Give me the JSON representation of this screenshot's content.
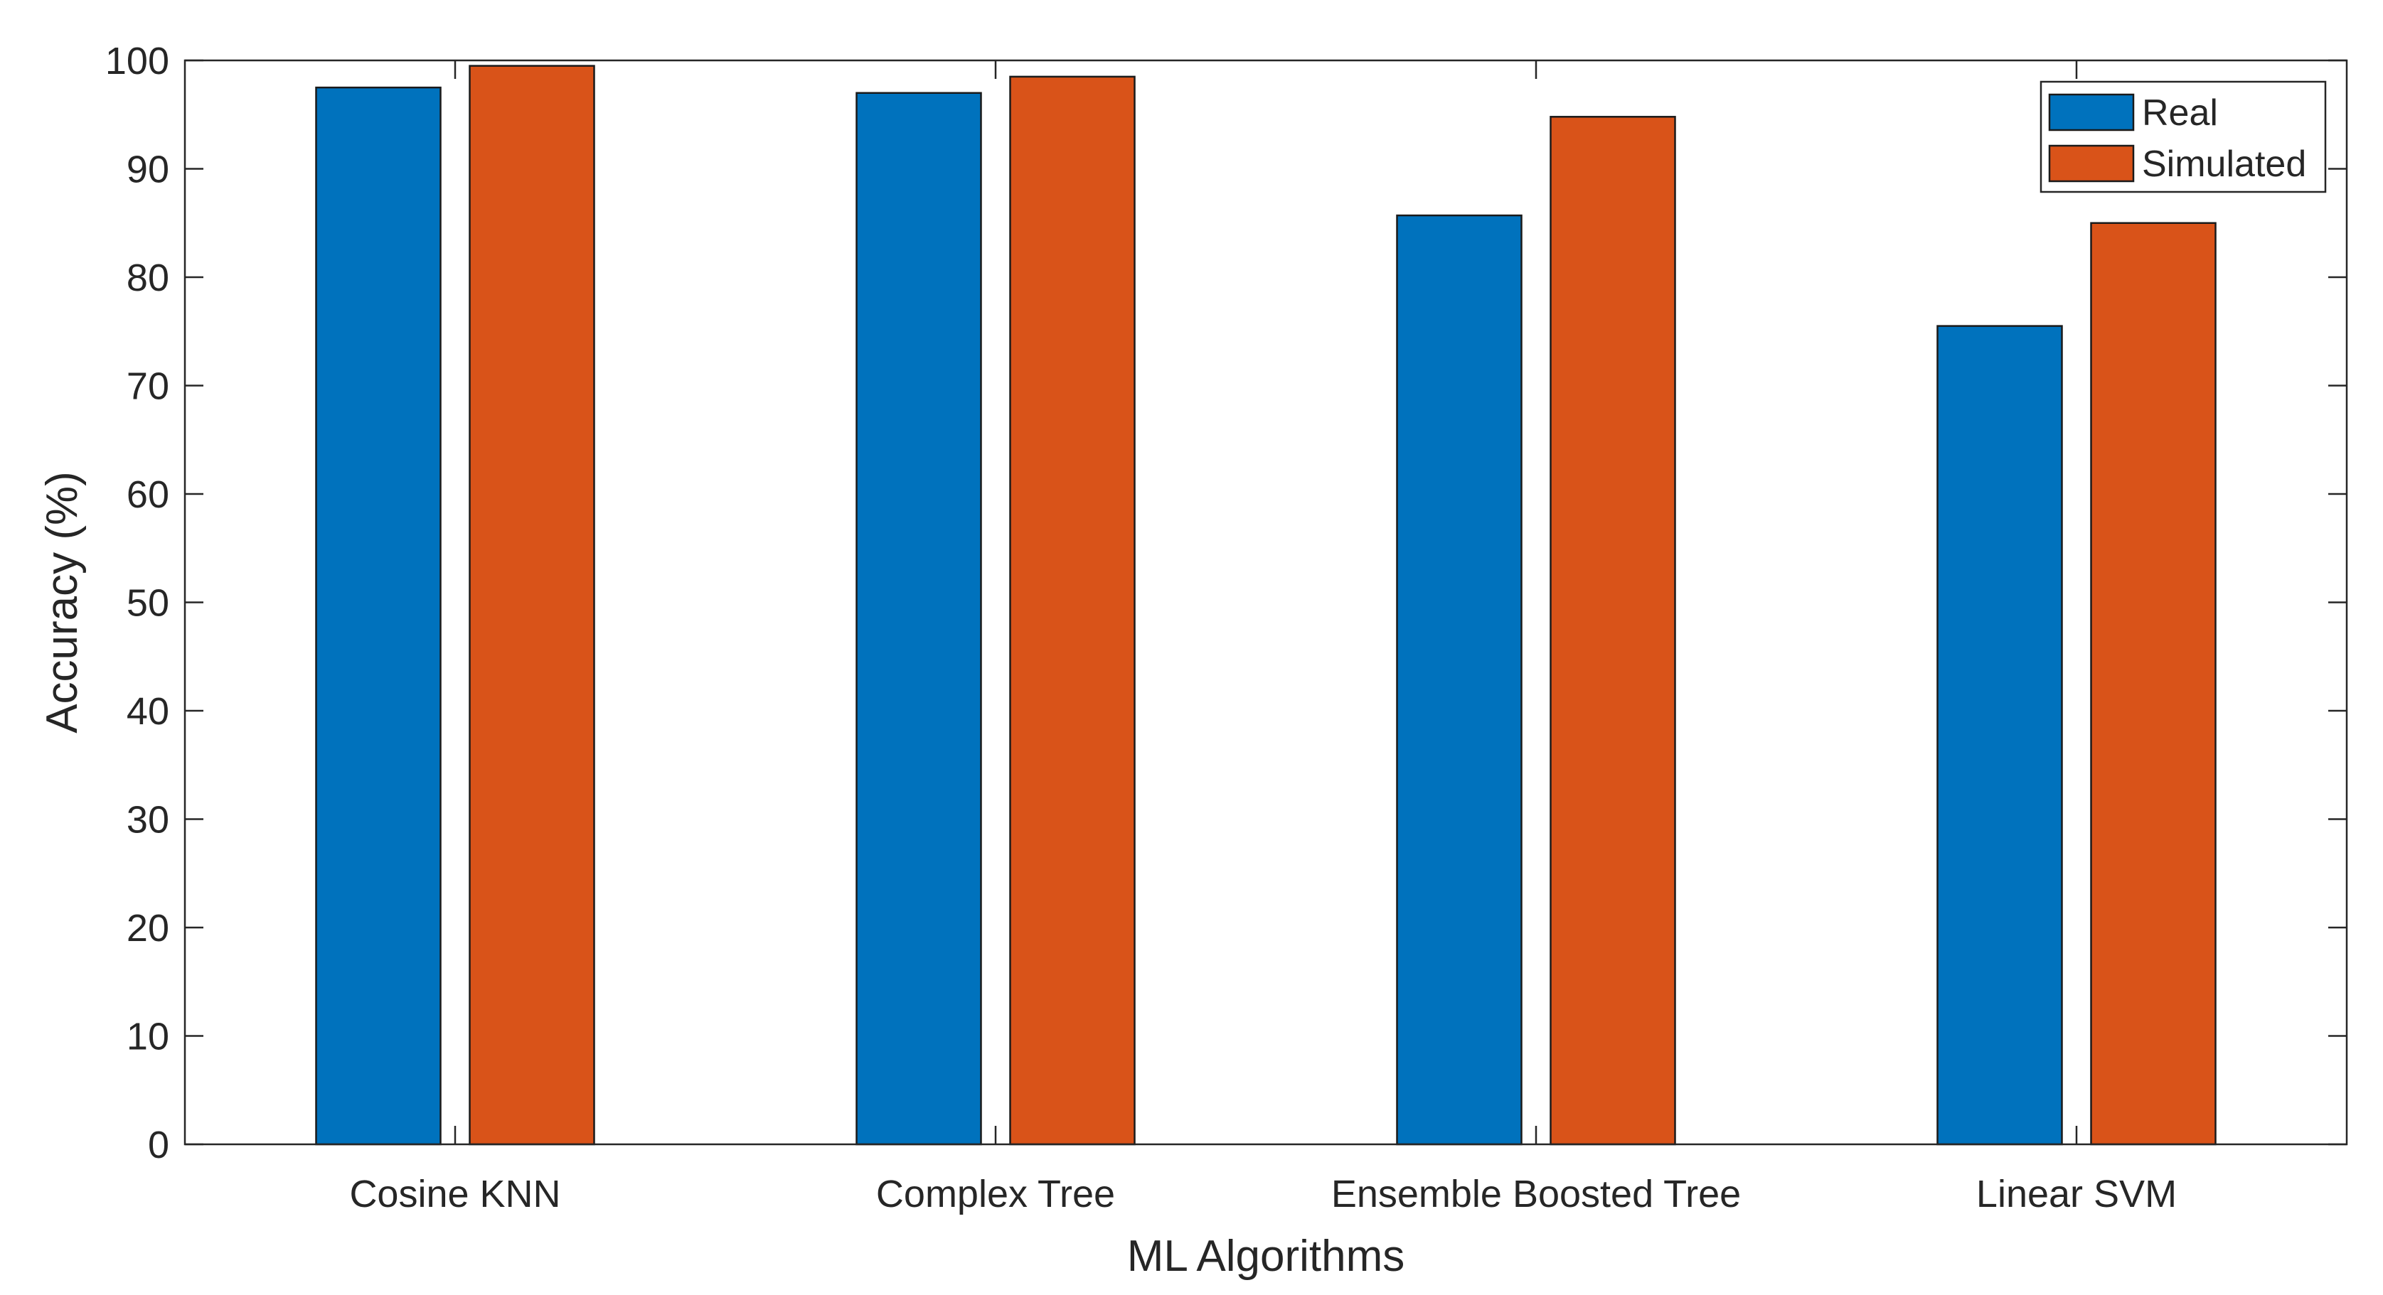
{
  "chart_data": {
    "type": "bar",
    "title": "",
    "xlabel": "ML Algorithms",
    "ylabel": "Accuracy (%)",
    "ylim": [
      0,
      100
    ],
    "yticks": [
      0,
      10,
      20,
      30,
      40,
      50,
      60,
      70,
      80,
      90,
      100
    ],
    "grid": false,
    "legend_position": "top-right",
    "categories": [
      "Cosine KNN",
      "Complex Tree",
      "Ensemble Boosted Tree",
      "Linear SVM"
    ],
    "series": [
      {
        "name": "Real",
        "color": "#0072BD",
        "values": [
          97.5,
          97.0,
          85.7,
          75.5
        ]
      },
      {
        "name": "Simulated",
        "color": "#D95319",
        "values": [
          99.5,
          98.5,
          94.8,
          85.0
        ]
      }
    ]
  }
}
